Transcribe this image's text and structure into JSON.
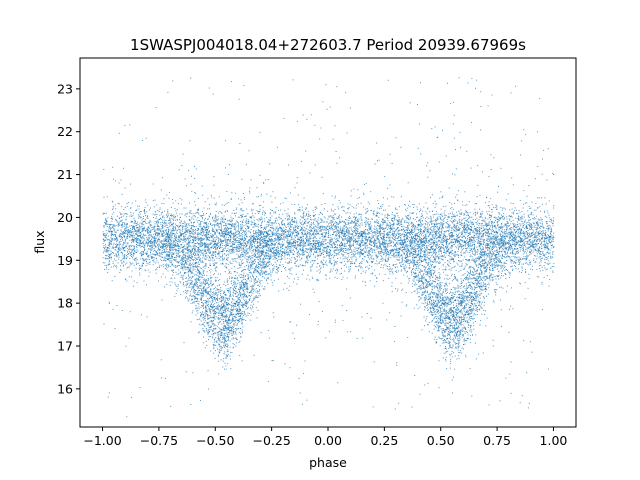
{
  "chart_data": {
    "type": "scatter",
    "title": "1SWASPJ004018.04+272603.7 Period 20939.67969s",
    "xlabel": "phase",
    "ylabel": "flux",
    "xlim": [
      -1.1,
      1.1
    ],
    "ylim": [
      15.11,
      23.72
    ],
    "xticks": [
      -1.0,
      -0.75,
      -0.5,
      -0.25,
      0.0,
      0.25,
      0.5,
      0.75,
      1.0
    ],
    "xtick_labels": [
      "−1.00",
      "−0.75",
      "−0.50",
      "−0.25",
      "0.00",
      "0.25",
      "0.50",
      "0.75",
      "1.00"
    ],
    "yticks": [
      16,
      17,
      18,
      19,
      20,
      21,
      22,
      23
    ],
    "ytick_labels": [
      "16",
      "17",
      "18",
      "19",
      "20",
      "21",
      "22",
      "23"
    ],
    "grid": false,
    "legend": "none",
    "point_color": "#1f77b4",
    "x_range_of_points": [
      -1.0,
      1.0
    ],
    "baseline_flux": 19.5,
    "baseline_spread": 0.35,
    "eclipse_phases": [
      -0.47,
      0.55
    ],
    "eclipse_min_flux": 17.2,
    "outlier_flux_range": [
      15.5,
      23.3
    ]
  }
}
